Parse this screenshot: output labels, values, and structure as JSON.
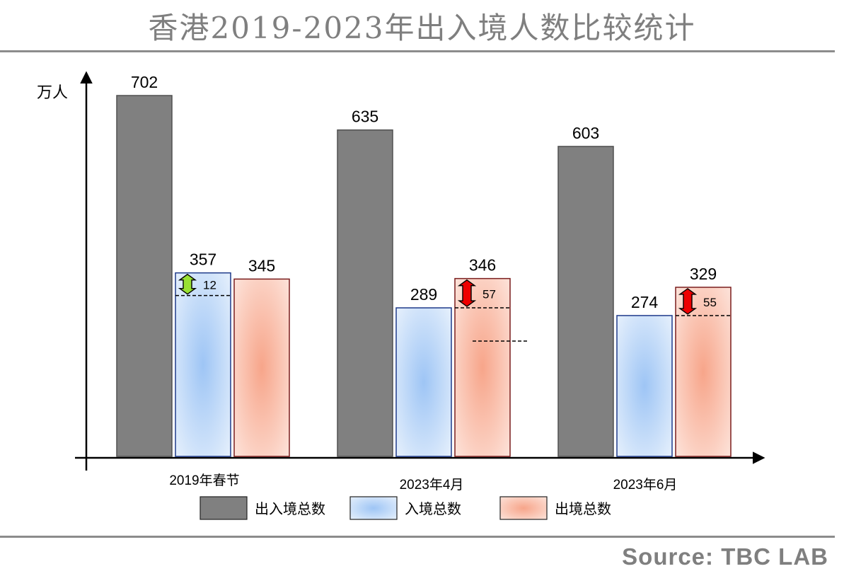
{
  "title": "香港2019-2023年出入境人数比较统计",
  "source": "Source: TBC LAB",
  "chart_data": {
    "type": "bar",
    "ylabel": "万人",
    "ylim": [
      0,
      760
    ],
    "grid": false,
    "legend_position": "bottom",
    "categories": [
      "2019年春节",
      "2023年4月",
      "2023年6月"
    ],
    "series": [
      {
        "name": "出入境总数",
        "color": "#808080",
        "values": [
          702,
          635,
          603
        ]
      },
      {
        "name": "入境总数",
        "color": "#9ec5f5",
        "values": [
          357,
          289,
          274
        ]
      },
      {
        "name": "出境总数",
        "color": "#f7a58a",
        "values": [
          345,
          346,
          329
        ]
      }
    ],
    "annotations": [
      {
        "category": "2019年春节",
        "series": "入境总数",
        "difference": 12,
        "arrow_color": "#99e033"
      },
      {
        "category": "2023年4月",
        "series": "出境总数",
        "difference": 57,
        "arrow_color": "#ee0000"
      },
      {
        "category": "2023年6月",
        "series": "出境总数",
        "difference": 55,
        "arrow_color": "#ee0000"
      }
    ]
  }
}
